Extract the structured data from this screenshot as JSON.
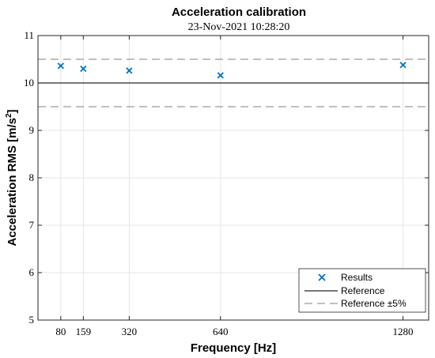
{
  "chart_data": {
    "type": "scatter",
    "title": "Acceleration calibration",
    "subtitle": "23-Nov-2021 10:28:20",
    "xlabel": "Frequency [Hz]",
    "ylabel_main": "Acceleration RMS [m/s",
    "ylabel_sup": "2",
    "ylabel_end": "]",
    "xlim": [
      0,
      1370
    ],
    "ylim": [
      5,
      11
    ],
    "xticks": [
      80,
      159,
      320,
      640,
      1280
    ],
    "xtick_labels": [
      "80",
      "159",
      "320",
      "640",
      "1280"
    ],
    "yticks": [
      5,
      6,
      7,
      8,
      9,
      10,
      11
    ],
    "ytick_labels": [
      "5",
      "6",
      "7",
      "8",
      "9",
      "10",
      "11"
    ],
    "grid": true,
    "legend_position": "bottom-right",
    "series": [
      {
        "name": "Results",
        "kind": "marker-x",
        "color": "#0072BD",
        "x": [
          80,
          159,
          320,
          640,
          1280
        ],
        "y": [
          10.36,
          10.3,
          10.26,
          10.16,
          10.38
        ]
      },
      {
        "name": "Reference",
        "kind": "line-solid",
        "color": "#262626",
        "y": 10
      },
      {
        "name": "Reference ±5%",
        "kind": "line-dashed",
        "color": "#808080",
        "y_values": [
          10.5,
          9.5
        ]
      }
    ]
  }
}
